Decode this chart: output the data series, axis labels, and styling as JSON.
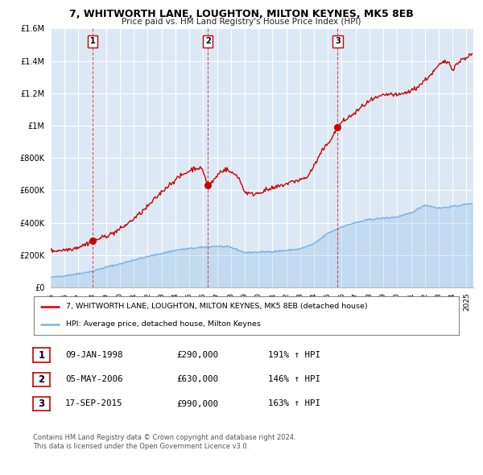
{
  "title": "7, WHITWORTH LANE, LOUGHTON, MILTON KEYNES, MK5 8EB",
  "subtitle": "Price paid vs. HM Land Registry's House Price Index (HPI)",
  "legend_line1": "7, WHITWORTH LANE, LOUGHTON, MILTON KEYNES, MK5 8EB (detached house)",
  "legend_line2": "HPI: Average price, detached house, Milton Keynes",
  "footer1": "Contains HM Land Registry data © Crown copyright and database right 2024.",
  "footer2": "This data is licensed under the Open Government Licence v3.0.",
  "sales": [
    {
      "label": "1",
      "date": "09-JAN-1998",
      "price": 290000,
      "hpi_pct": "191%",
      "year": 1998.03
    },
    {
      "label": "2",
      "date": "05-MAY-2006",
      "price": 630000,
      "hpi_pct": "146%",
      "year": 2006.34
    },
    {
      "label": "3",
      "date": "17-SEP-2015",
      "price": 990000,
      "hpi_pct": "163%",
      "year": 2015.71
    }
  ],
  "table_rows": [
    {
      "num": "1",
      "date": "09-JAN-1998",
      "price": "£290,000",
      "hpi": "191% ↑ HPI"
    },
    {
      "num": "2",
      "date": "05-MAY-2006",
      "price": "£630,000",
      "hpi": "146% ↑ HPI"
    },
    {
      "num": "3",
      "date": "17-SEP-2015",
      "price": "£990,000",
      "hpi": "163% ↑ HPI"
    }
  ],
  "hpi_color": "#7ab4e8",
  "price_color": "#cc0000",
  "vline_color": "#cc0000",
  "bg_color": "#dce9f5",
  "ylim": [
    0,
    1600000
  ],
  "xlim_start": 1995.0,
  "xlim_end": 2025.5,
  "yticks": [
    0,
    200000,
    400000,
    600000,
    800000,
    1000000,
    1200000,
    1400000,
    1600000
  ],
  "ytick_labels": [
    "£0",
    "£200K",
    "£400K",
    "£600K",
    "£800K",
    "£1M",
    "£1.2M",
    "£1.4M",
    "£1.6M"
  ],
  "xticks": [
    1995,
    1996,
    1997,
    1998,
    1999,
    2000,
    2001,
    2002,
    2003,
    2004,
    2005,
    2006,
    2007,
    2008,
    2009,
    2010,
    2011,
    2012,
    2013,
    2014,
    2015,
    2016,
    2017,
    2018,
    2019,
    2020,
    2021,
    2022,
    2023,
    2024,
    2025
  ]
}
